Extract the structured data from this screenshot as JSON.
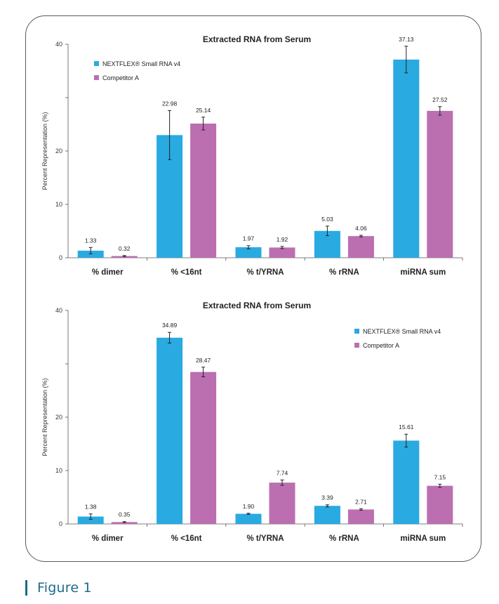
{
  "figure_label": "Figure 1",
  "colors": {
    "series_1": "#29aae1",
    "series_2": "#bb6fb0",
    "caption": "#1c6a8e"
  },
  "chart_data": [
    {
      "type": "bar",
      "title": "Extracted RNA from Serum",
      "xlabel": "",
      "ylabel": "Percent Representation (%)",
      "ylim": [
        0,
        40
      ],
      "y_ticks": [
        0,
        10,
        20,
        40
      ],
      "legend_position": "top-left",
      "categories": [
        "% dimer",
        "% <16nt",
        "% t/YRNA",
        "% rRNA",
        "miRNA sum"
      ],
      "series": [
        {
          "name": "NEXTFLEX® Small RNA v4",
          "values": [
            1.33,
            22.98,
            1.97,
            5.03,
            37.13
          ],
          "labels": [
            "1.33",
            "22.98",
            "1.97",
            "5.03",
            "37.13"
          ],
          "errors": [
            0.6,
            4.6,
            0.3,
            0.9,
            2.5
          ]
        },
        {
          "name": "Competitor A",
          "values": [
            0.32,
            25.14,
            1.92,
            4.06,
            27.52
          ],
          "labels": [
            "0.32",
            "25.14",
            "1.92",
            "4.06",
            "27.52"
          ],
          "errors": [
            0.1,
            1.2,
            0.2,
            0.15,
            0.8
          ]
        }
      ]
    },
    {
      "type": "bar",
      "title": "Extracted RNA from Serum",
      "xlabel": "",
      "ylabel": "Percent Representation (%)",
      "ylim": [
        0,
        40
      ],
      "y_ticks": [
        0,
        10,
        20,
        40
      ],
      "legend_position": "top-right",
      "categories": [
        "% dimer",
        "% <16nt",
        "% t/YRNA",
        "% rRNA",
        "miRNA sum"
      ],
      "series": [
        {
          "name": "NEXTFLEX® Small RNA v4",
          "values": [
            1.38,
            34.89,
            1.9,
            3.39,
            15.61
          ],
          "labels": [
            "1.38",
            "34.89",
            "1.90",
            "3.39",
            "15.61"
          ],
          "errors": [
            0.5,
            1.0,
            0.1,
            0.2,
            1.2
          ]
        },
        {
          "name": "Competitor A",
          "values": [
            0.35,
            28.47,
            7.74,
            2.71,
            7.15
          ],
          "labels": [
            "0.35",
            "28.47",
            "7.74",
            "2.71",
            "7.15"
          ],
          "errors": [
            0.08,
            0.9,
            0.5,
            0.15,
            0.3
          ]
        }
      ]
    }
  ]
}
